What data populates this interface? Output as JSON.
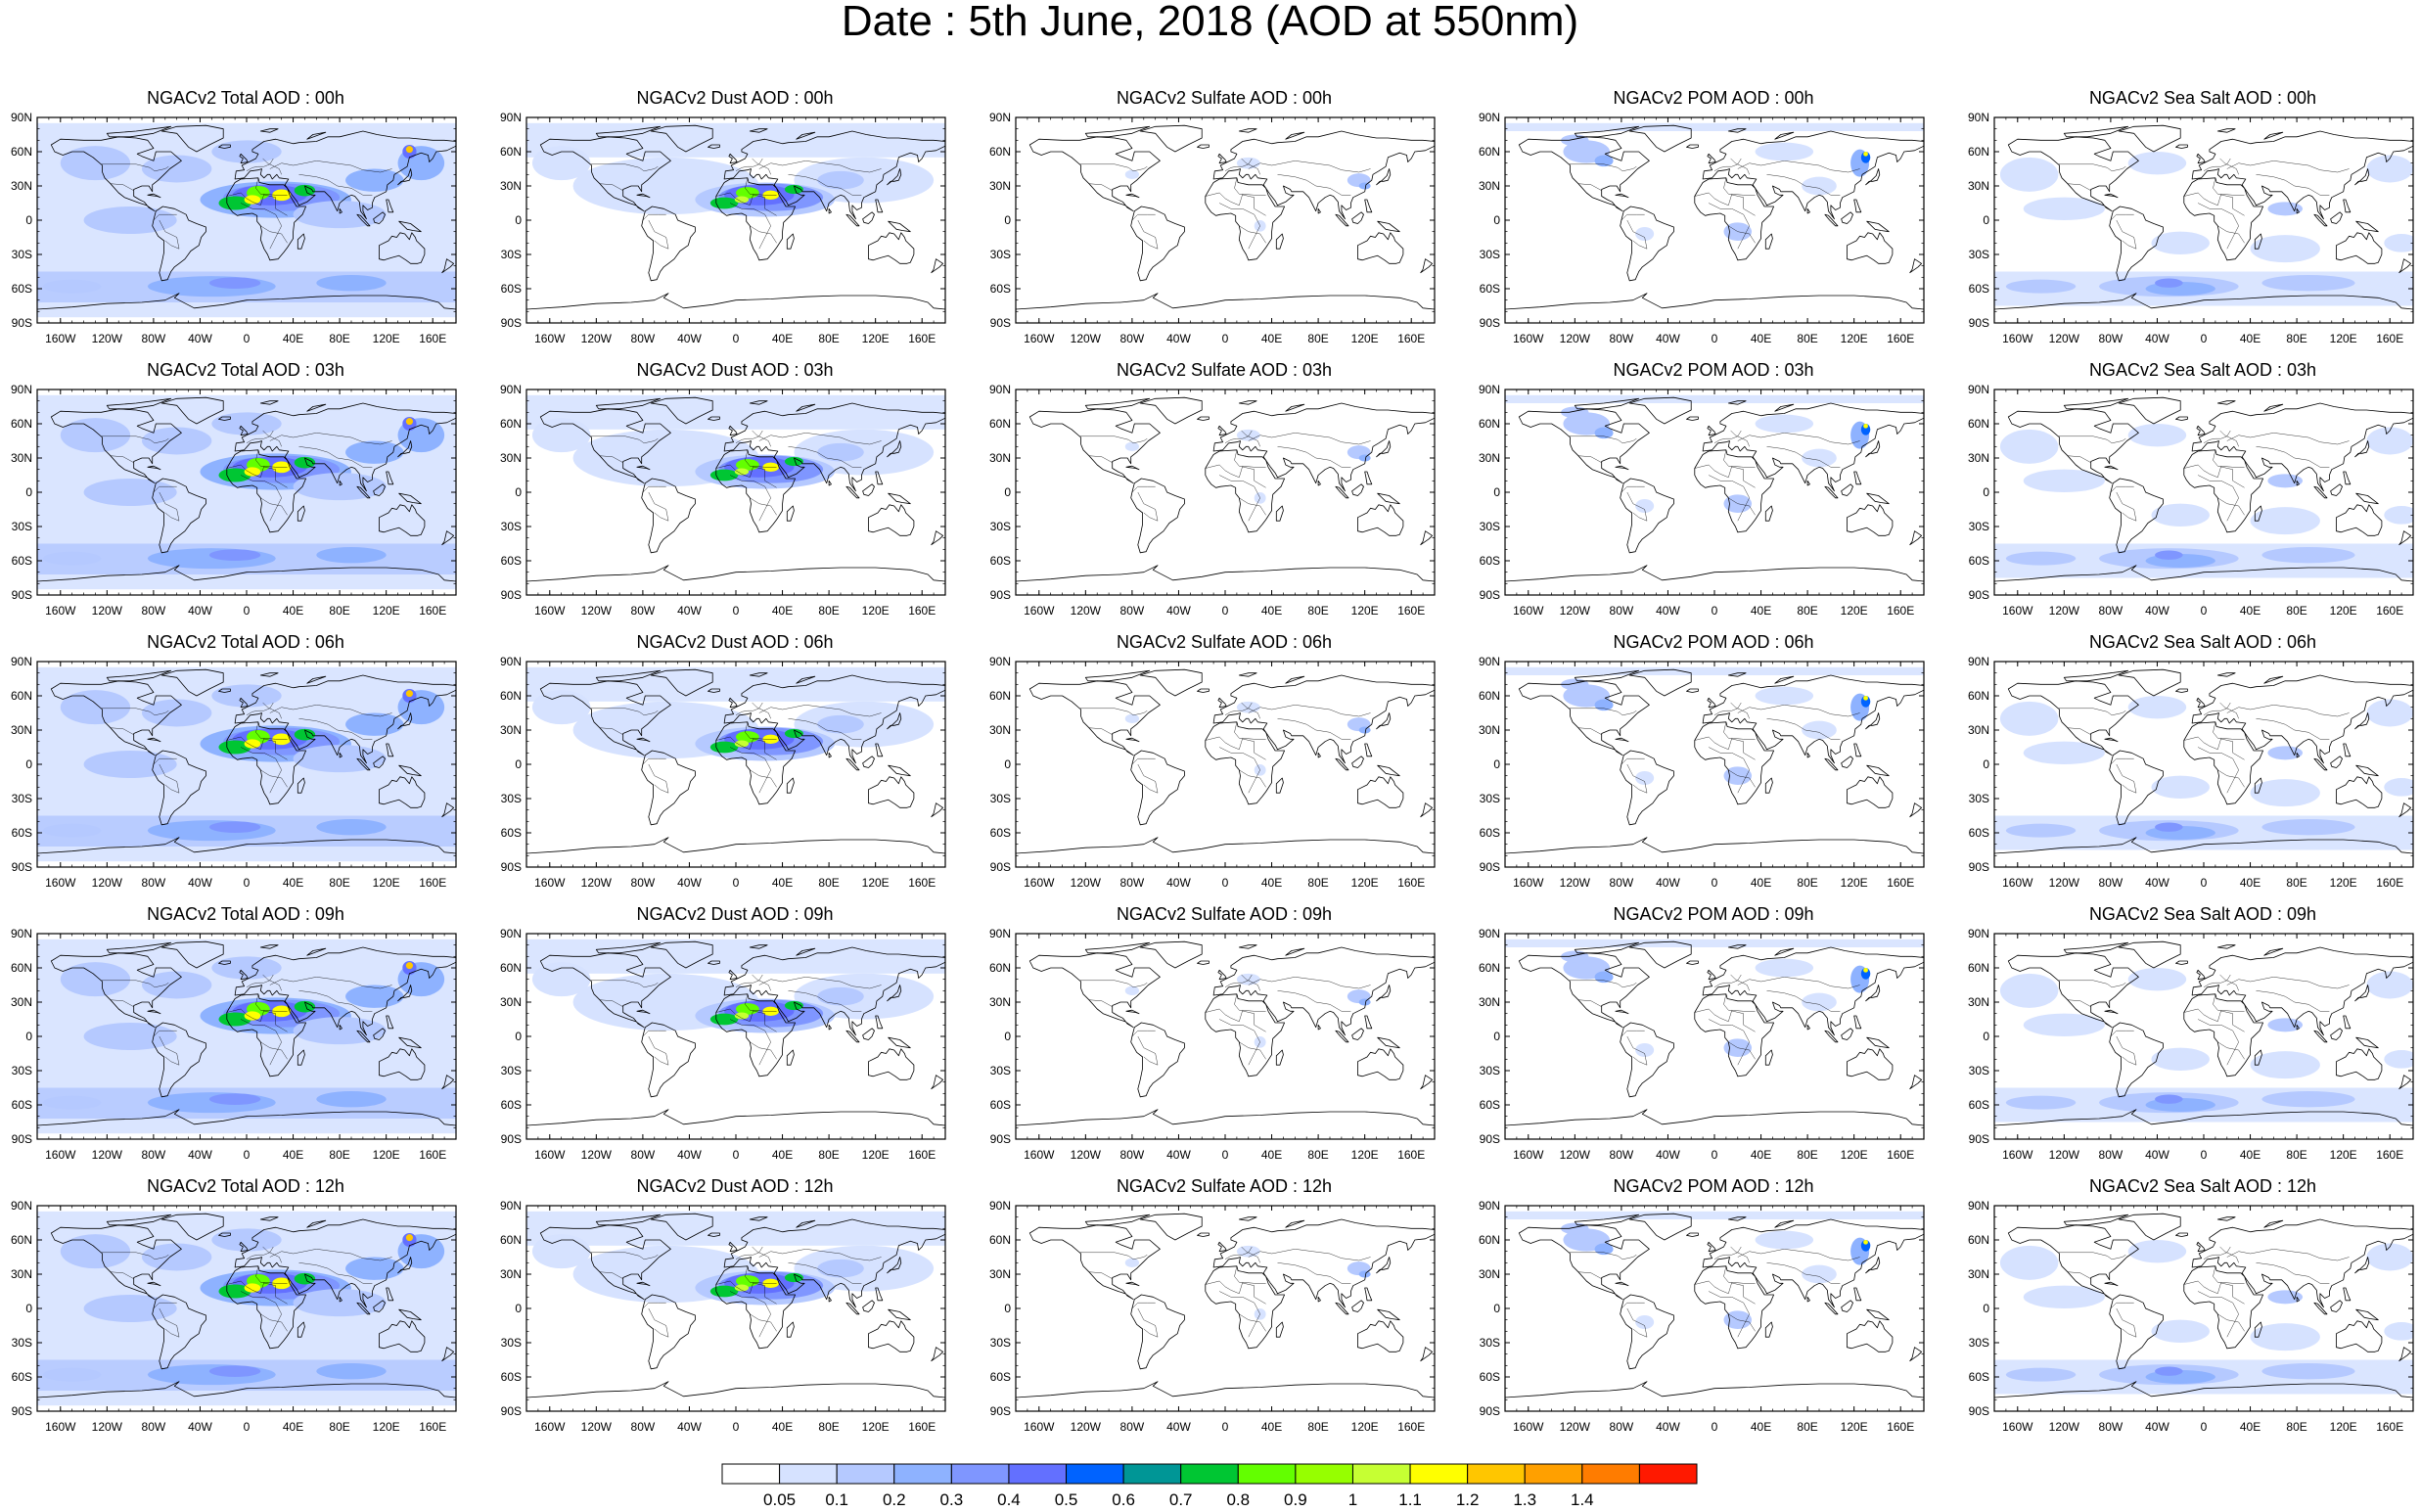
{
  "title": "Date : 5th June, 2018 (AOD at 550nm)",
  "lat_labels": [
    "90N",
    "60N",
    "30N",
    "0",
    "30S",
    "60S",
    "90S"
  ],
  "lon_labels": [
    "160W",
    "120W",
    "80W",
    "40W",
    "0",
    "40E",
    "80E",
    "120E",
    "160E"
  ],
  "panels": [
    [
      {
        "title": "NGACv2 Total AOD : 00h",
        "species": "total"
      },
      {
        "title": "NGACv2 Dust AOD : 00h",
        "species": "dust"
      },
      {
        "title": "NGACv2 Sulfate AOD : 00h",
        "species": "sulfate"
      },
      {
        "title": "NGACv2 POM AOD : 00h",
        "species": "pom"
      },
      {
        "title": "NGACv2 Sea Salt AOD : 00h",
        "species": "seasalt"
      }
    ],
    [
      {
        "title": "NGACv2 Total AOD : 03h",
        "species": "total"
      },
      {
        "title": "NGACv2 Dust AOD : 03h",
        "species": "dust"
      },
      {
        "title": "NGACv2 Sulfate AOD : 03h",
        "species": "sulfate"
      },
      {
        "title": "NGACv2 POM AOD : 03h",
        "species": "pom"
      },
      {
        "title": "NGACv2 Sea Salt AOD : 03h",
        "species": "seasalt"
      }
    ],
    [
      {
        "title": "NGACv2 Total AOD : 06h",
        "species": "total"
      },
      {
        "title": "NGACv2 Dust AOD : 06h",
        "species": "dust"
      },
      {
        "title": "NGACv2 Sulfate AOD : 06h",
        "species": "sulfate"
      },
      {
        "title": "NGACv2 POM AOD : 06h",
        "species": "pom"
      },
      {
        "title": "NGACv2 Sea Salt AOD : 06h",
        "species": "seasalt"
      }
    ],
    [
      {
        "title": "NGACv2 Total AOD : 09h",
        "species": "total"
      },
      {
        "title": "NGACv2 Dust AOD : 09h",
        "species": "dust"
      },
      {
        "title": "NGACv2 Sulfate AOD : 09h",
        "species": "sulfate"
      },
      {
        "title": "NGACv2 POM AOD : 09h",
        "species": "pom"
      },
      {
        "title": "NGACv2 Sea Salt  AOD : 09h",
        "species": "seasalt"
      }
    ],
    [
      {
        "title": "NGACv2 Total AOD  : 12h",
        "species": "total"
      },
      {
        "title": "NGACv2 Dust AOD : 12h",
        "species": "dust"
      },
      {
        "title": "NGACv2 Sulfate AOD : 12h",
        "species": "sulfate"
      },
      {
        "title": "NGACv2 POM  AOD : 12h",
        "species": "pom"
      },
      {
        "title": "NGACv2 Sea Salt  AOD : 12h",
        "species": "seasalt"
      }
    ]
  ],
  "colorbar": {
    "labels": [
      "0.05",
      "0.1",
      "0.2",
      "0.3",
      "0.4",
      "0.5",
      "0.6",
      "0.7",
      "0.8",
      "0.9",
      "1",
      "1.1",
      "1.2",
      "1.3",
      "1.4"
    ],
    "colors": [
      "#ffffff",
      "#d6e2ff",
      "#b5c9ff",
      "#8eb2ff",
      "#7f96ff",
      "#6370ff",
      "#0063ff",
      "#009696",
      "#00c633",
      "#63ff00",
      "#96ff00",
      "#c6ff33",
      "#ffff00",
      "#ffc600",
      "#ffa000",
      "#ff7c00",
      "#ff1900"
    ]
  }
}
